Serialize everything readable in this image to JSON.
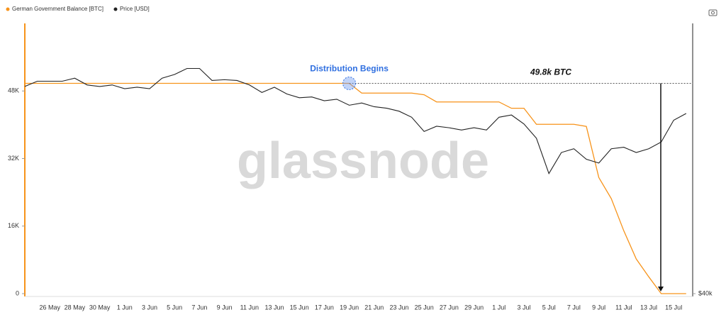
{
  "chart_data": {
    "type": "line",
    "categories": [
      null,
      null,
      "26 May",
      null,
      "28 May",
      null,
      "30 May",
      null,
      "1 Jun",
      null,
      "3 Jun",
      null,
      "5 Jun",
      null,
      "7 Jun",
      null,
      "9 Jun",
      null,
      "11 Jun",
      null,
      "13 Jun",
      null,
      "15 Jun",
      null,
      "17 Jun",
      null,
      "19 Jun",
      null,
      "21 Jun",
      null,
      "23 Jun",
      null,
      "25 Jun",
      null,
      "27 Jun",
      null,
      "29 Jun",
      null,
      "1 Jul",
      null,
      "3 Jul",
      null,
      "5 Jul",
      null,
      "7 Jul",
      null,
      "9 Jul",
      null,
      "11 Jul",
      null,
      "13 Jul",
      null,
      "15 Jul",
      null
    ],
    "series": [
      {
        "name": "German Government Balance [BTC]",
        "color": "#f7931a",
        "values": [
          49800,
          49800,
          49800,
          49800,
          49800,
          49800,
          49800,
          49800,
          49800,
          49800,
          49800,
          49800,
          49800,
          49800,
          49800,
          49800,
          49800,
          49800,
          49800,
          49800,
          49800,
          49800,
          49800,
          49800,
          49800,
          49800,
          49800,
          47500,
          47500,
          47500,
          47500,
          47500,
          47100,
          45400,
          45400,
          45400,
          45400,
          45400,
          45400,
          43900,
          43900,
          40100,
          40100,
          40100,
          40100,
          39600,
          27500,
          22500,
          14900,
          8200,
          4000,
          0,
          0,
          0
        ]
      },
      {
        "name": "Price [USD]",
        "color": "#222222",
        "axis": "y2",
        "values": [
          67600,
          68300,
          68300,
          68300,
          68700,
          67800,
          67600,
          67800,
          67300,
          67500,
          67300,
          68700,
          69200,
          70000,
          70000,
          68400,
          68500,
          68400,
          67800,
          66800,
          67500,
          66600,
          66100,
          66200,
          65700,
          65900,
          65100,
          65400,
          64900,
          64700,
          64300,
          63500,
          61600,
          62300,
          62100,
          61800,
          62100,
          61800,
          63500,
          63800,
          62600,
          60700,
          56000,
          58800,
          59300,
          57900,
          57400,
          59300,
          59500,
          58800,
          59300,
          60200,
          63100,
          64000
        ]
      }
    ],
    "ylim": [
      0,
      64000
    ],
    "yticks": [
      0,
      {
        "value": 16000,
        "label": "16K"
      },
      {
        "value": 32000,
        "label": "32K"
      },
      {
        "value": 48000,
        "label": "48K"
      }
    ],
    "y2lim": [
      40000,
      76000
    ],
    "y2ticks": [
      {
        "value": 40000,
        "label": "$40k"
      }
    ],
    "grid": false,
    "legend": "top-left",
    "annotations": [
      "Distribution Begins",
      "49.8k BTC"
    ],
    "watermark": "glassnode"
  }
}
